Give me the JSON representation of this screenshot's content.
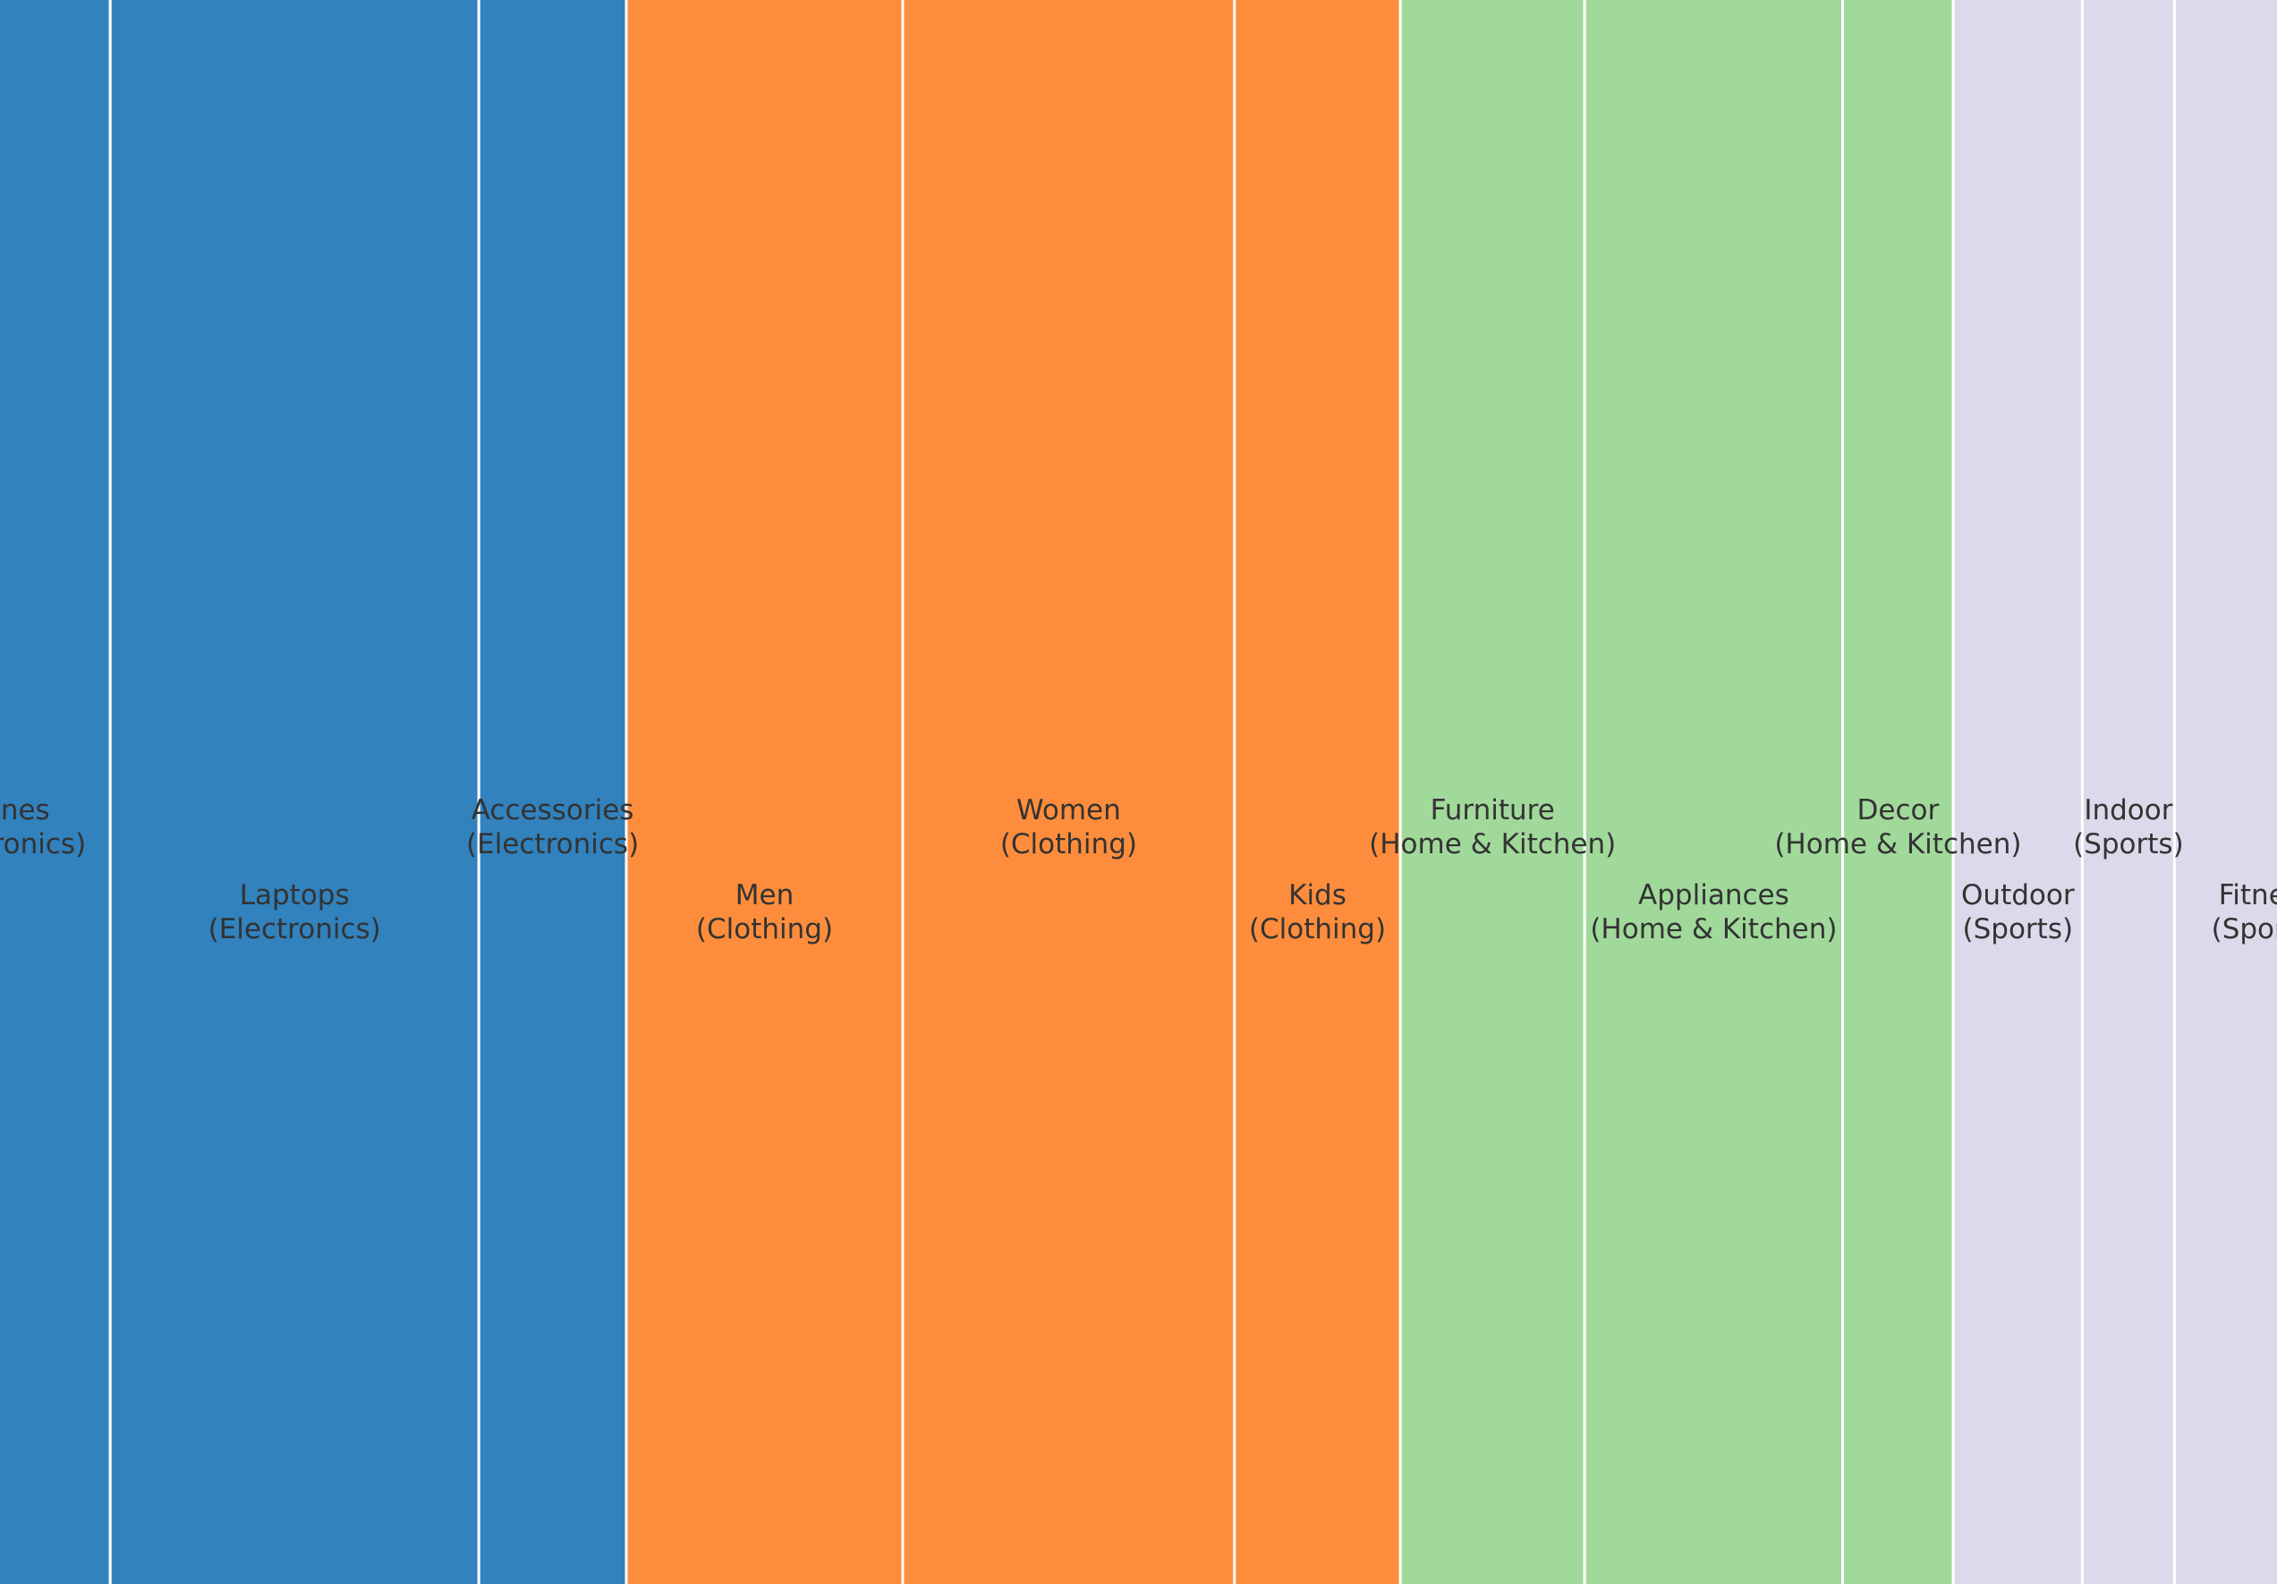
{
  "chart_data": {
    "type": "marimekko",
    "title": "",
    "xlabel": "",
    "ylabel": "",
    "grid": false,
    "legend": "none",
    "group_colors": {
      "Electronics": "#3182bd",
      "Clothing": "#fd8d3c",
      "Home & Kitchen": "#a1d99b",
      "Sports": "#dadaeb"
    },
    "segments": [
      {
        "name": "Phones",
        "group": "Electronics",
        "value": 120
      },
      {
        "name": "Laptops",
        "group": "Electronics",
        "value": 200
      },
      {
        "name": "Accessories",
        "group": "Electronics",
        "value": 80
      },
      {
        "name": "Men",
        "group": "Clothing",
        "value": 150
      },
      {
        "name": "Women",
        "group": "Clothing",
        "value": 180
      },
      {
        "name": "Kids",
        "group": "Clothing",
        "value": 90
      },
      {
        "name": "Furniture",
        "group": "Home & Kitchen",
        "value": 100
      },
      {
        "name": "Appliances",
        "group": "Home & Kitchen",
        "value": 140
      },
      {
        "name": "Decor",
        "group": "Home & Kitchen",
        "value": 60
      },
      {
        "name": "Outdoor",
        "group": "Sports",
        "value": 70
      },
      {
        "name": "Indoor",
        "group": "Sports",
        "value": 50
      },
      {
        "name": "Fitness",
        "group": "Sports",
        "value": 100
      }
    ]
  }
}
